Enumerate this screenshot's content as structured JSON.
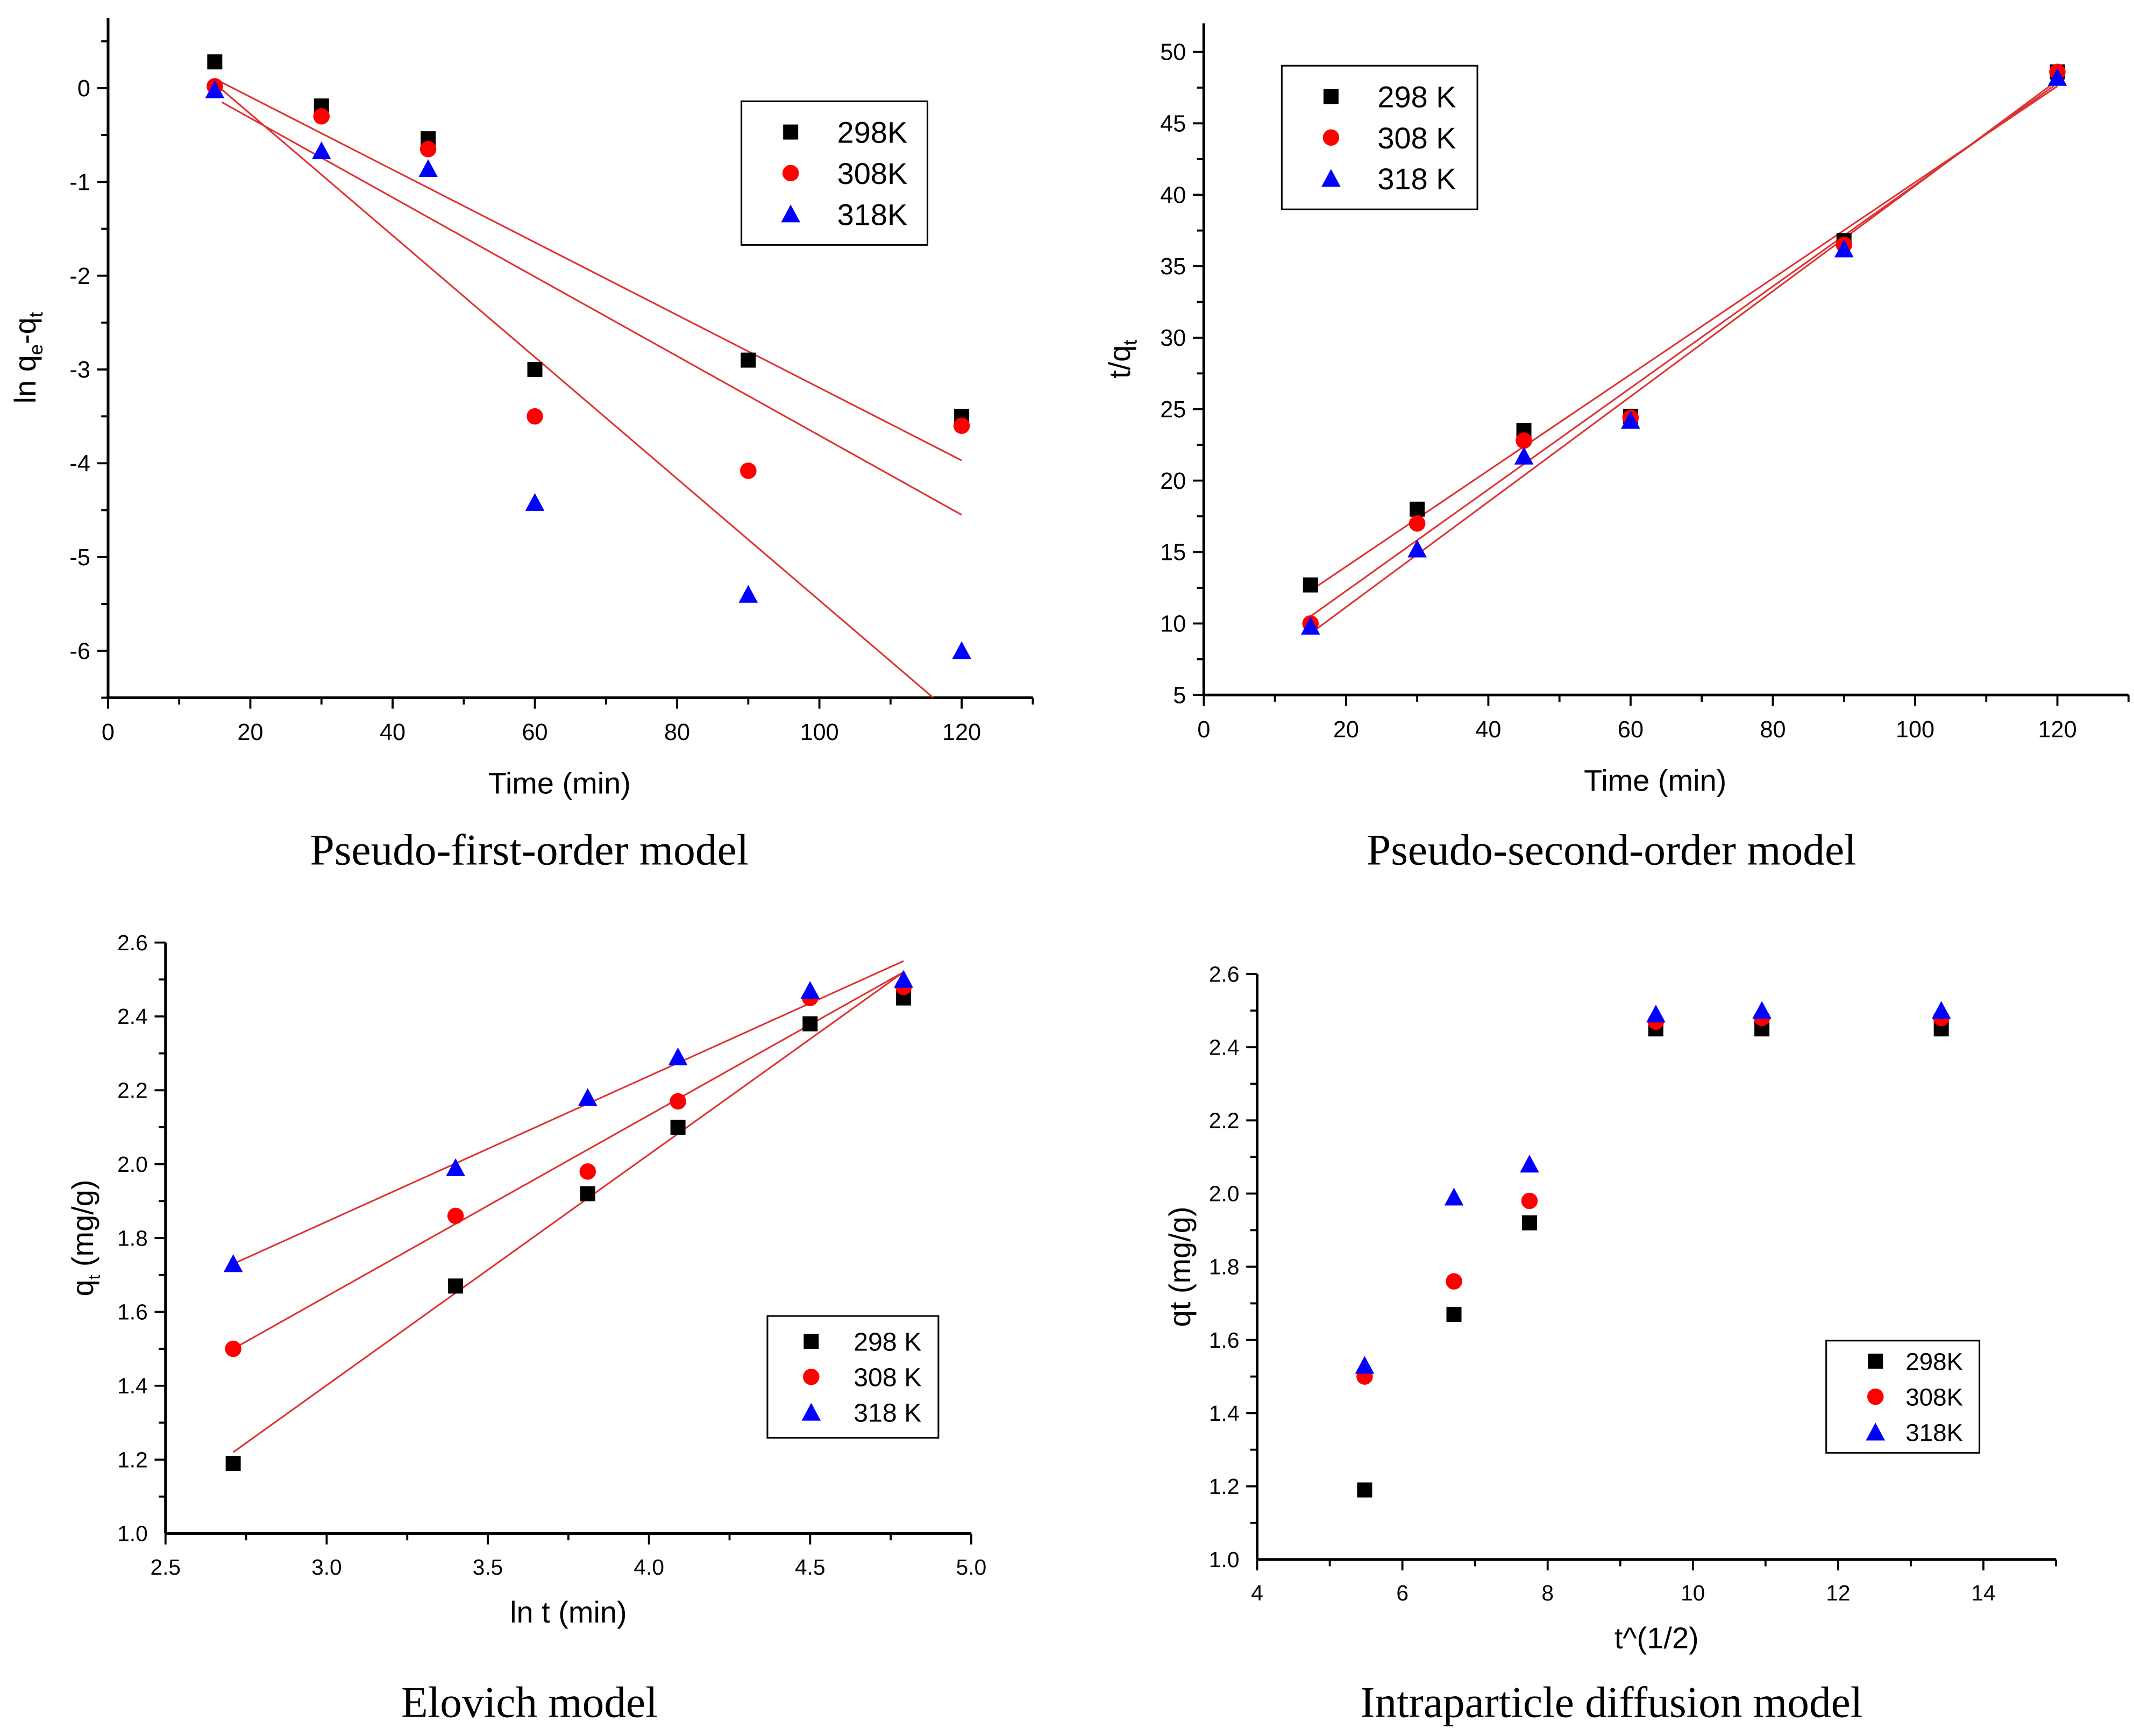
{
  "colors": {
    "298K": "#000000",
    "308K": "#ff0000",
    "318K": "#0000ff",
    "fit_line": "#e03030"
  },
  "chart_data": [
    {
      "type": "scatter",
      "title": "Pseudo-first-order model",
      "xlabel": "Time (min)",
      "ylabel": "ln q_e-q_t",
      "xlim": [
        0,
        130
      ],
      "ylim": [
        -6.5,
        0.75
      ],
      "xticks": [
        0,
        20,
        40,
        60,
        80,
        100,
        120
      ],
      "yticks": [
        0,
        -1,
        -2,
        -3,
        -4,
        -5,
        -6
      ],
      "legend_position": "top-right",
      "x": [
        15,
        30,
        45,
        60,
        90,
        120
      ],
      "series": [
        {
          "name": "298K",
          "marker": "square",
          "values": [
            0.28,
            -0.19,
            -0.54,
            -3.0,
            -2.9,
            -3.5
          ],
          "fit": [
            [
              15,
              0.1
            ],
            [
              120,
              -3.97
            ]
          ]
        },
        {
          "name": "308K",
          "marker": "circle",
          "values": [
            0.02,
            -0.3,
            -0.65,
            -3.5,
            -4.08,
            -3.6
          ],
          "fit": [
            [
              16,
              -0.15
            ],
            [
              120,
              -4.55
            ]
          ]
        },
        {
          "name": "318K",
          "marker": "triangle",
          "values": [
            -0.02,
            -0.67,
            -0.86,
            -4.42,
            -5.4,
            -6.0
          ],
          "fit": [
            [
              15,
              0.05
            ],
            [
              116,
              -6.5
            ]
          ]
        }
      ]
    },
    {
      "type": "scatter",
      "title": "Pseudo-second-order model",
      "xlabel": "Time (min)",
      "ylabel": "t/q_t",
      "xlim": [
        0,
        130
      ],
      "ylim": [
        5,
        52
      ],
      "xticks": [
        0,
        20,
        40,
        60,
        80,
        100,
        120
      ],
      "yticks": [
        5,
        10,
        15,
        20,
        25,
        30,
        35,
        40,
        45,
        50
      ],
      "legend_position": "top-left",
      "x": [
        15,
        30,
        45,
        60,
        90,
        120
      ],
      "series": [
        {
          "name": "298 K",
          "marker": "square",
          "values": [
            12.7,
            18.0,
            23.5,
            24.5,
            36.8,
            48.6
          ],
          "fit": [
            [
              15,
              12.3
            ],
            [
              120,
              47.6
            ]
          ]
        },
        {
          "name": "308 K",
          "marker": "circle",
          "values": [
            10.0,
            17.0,
            22.8,
            24.4,
            36.5,
            48.6
          ],
          "fit": [
            [
              15,
              10.5
            ],
            [
              120,
              47.8
            ]
          ]
        },
        {
          "name": "318 K",
          "marker": "triangle",
          "values": [
            9.8,
            15.2,
            21.7,
            24.2,
            36.2,
            48.2
          ],
          "fit": [
            [
              15,
              9.3
            ],
            [
              120,
              48.0
            ]
          ]
        }
      ]
    },
    {
      "type": "scatter",
      "title": "Elovich model",
      "xlabel": "ln t (min)",
      "ylabel": "q_t (mg/g)",
      "xlim": [
        2.5,
        5.0
      ],
      "ylim": [
        1.0,
        2.6
      ],
      "xticks": [
        "2.5",
        "3.0",
        "3.5",
        "4.0",
        "4.5",
        "5.0"
      ],
      "yticks": [
        "1.0",
        "1.2",
        "1.4",
        "1.6",
        "1.8",
        "2.0",
        "2.2",
        "2.4",
        "2.6"
      ],
      "legend_position": "bottom-right",
      "x": [
        2.71,
        3.4,
        3.81,
        4.09,
        4.5,
        4.79
      ],
      "series": [
        {
          "name": "298 K",
          "marker": "square",
          "values": [
            1.19,
            1.67,
            1.92,
            2.1,
            2.38,
            2.45
          ],
          "fit": [
            [
              2.71,
              1.22
            ],
            [
              4.79,
              2.52
            ]
          ]
        },
        {
          "name": "308 K",
          "marker": "circle",
          "values": [
            1.5,
            1.86,
            1.98,
            2.17,
            2.45,
            2.48
          ],
          "fit": [
            [
              2.71,
              1.5
            ],
            [
              4.79,
              2.52
            ]
          ]
        },
        {
          "name": "318 K",
          "marker": "triangle",
          "values": [
            1.73,
            1.99,
            2.18,
            2.29,
            2.47,
            2.5
          ],
          "fit": [
            [
              2.71,
              1.73
            ],
            [
              4.79,
              2.55
            ]
          ]
        }
      ]
    },
    {
      "type": "scatter",
      "title": "Intraparticle diffusion model",
      "xlabel": "t^(1/2)",
      "ylabel": "qt (mg/g)",
      "xlim": [
        4,
        15
      ],
      "ylim": [
        1.0,
        2.6
      ],
      "xticks": [
        "4",
        "6",
        "8",
        "10",
        "12",
        "14"
      ],
      "yticks": [
        "1.0",
        "1.2",
        "1.4",
        "1.6",
        "1.8",
        "2.0",
        "2.2",
        "2.4",
        "2.6"
      ],
      "legend_position": "bottom-right",
      "x": [
        5.48,
        6.71,
        7.75,
        9.49,
        10.95,
        13.42
      ],
      "series": [
        {
          "name": "298K",
          "marker": "square",
          "values": [
            1.19,
            1.67,
            1.92,
            2.45,
            2.45,
            2.45
          ]
        },
        {
          "name": "308K",
          "marker": "circle",
          "values": [
            1.5,
            1.76,
            1.98,
            2.47,
            2.48,
            2.48
          ]
        },
        {
          "name": "318K",
          "marker": "triangle",
          "values": [
            1.53,
            1.99,
            2.08,
            2.49,
            2.5,
            2.5
          ]
        }
      ]
    }
  ]
}
